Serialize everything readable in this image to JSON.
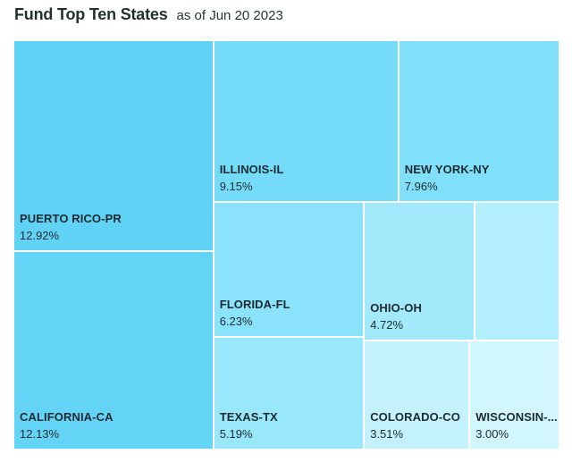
{
  "header": {
    "title": "Fund Top Ten States",
    "subtitle": "as of Jun 20 2023"
  },
  "chart_data": {
    "type": "treemap",
    "title": "Fund Top Ten States",
    "subtitle": "as of Jun 20 2023",
    "unit": "%",
    "items": [
      {
        "label": "PUERTO RICO-PR",
        "value": 12.92,
        "display": "12.92%",
        "color": "#5fd2f5"
      },
      {
        "label": "CALIFORNIA-CA",
        "value": 12.13,
        "display": "12.13%",
        "color": "#64d4f6"
      },
      {
        "label": "ILLINOIS-IL",
        "value": 9.15,
        "display": "9.15%",
        "color": "#74dcf8"
      },
      {
        "label": "NEW YORK-NY",
        "value": 7.96,
        "display": "7.96%",
        "color": "#80e0f9"
      },
      {
        "label": "FLORIDA-FL",
        "value": 6.23,
        "display": "6.23%",
        "color": "#8ae3fa"
      },
      {
        "label": "TEXAS-TX",
        "value": 5.19,
        "display": "5.19%",
        "color": "#98e7fa"
      },
      {
        "label": "OHIO-OH",
        "value": 4.72,
        "display": "4.72%",
        "color": "#a2eafb"
      },
      {
        "label": "",
        "value": 3.6,
        "display": "",
        "color": "#b3effd"
      },
      {
        "label": "COLORADO-CO",
        "value": 3.51,
        "display": "3.51%",
        "color": "#c3f2fd"
      },
      {
        "label": "WISCONSIN-...",
        "value": 3.0,
        "display": "3.00%",
        "color": "#d2f6fe"
      }
    ]
  }
}
